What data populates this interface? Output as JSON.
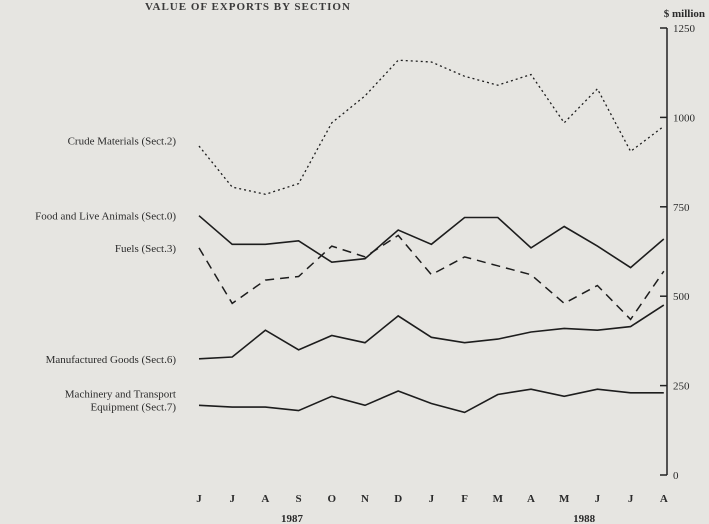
{
  "chart_data": {
    "type": "line",
    "title": "VALUE OF EXPORTS BY SECTION",
    "unit_label": "$ million",
    "ylim": [
      0,
      1250
    ],
    "y_ticks": [
      0,
      250,
      500,
      750,
      1000,
      1250
    ],
    "x_tick_labels": [
      "J",
      "J",
      "A",
      "S",
      "O",
      "N",
      "D",
      "J",
      "F",
      "M",
      "A",
      "M",
      "J",
      "J",
      "A"
    ],
    "year_labels": [
      {
        "text": "1987",
        "index": 2.8
      },
      {
        "text": "1988",
        "index": 11.6
      }
    ],
    "series": [
      {
        "name": "Crude Materials (Sect.2)",
        "style": "dotted",
        "label_value": 935,
        "values": [
          920,
          805,
          785,
          815,
          985,
          1060,
          1160,
          1155,
          1115,
          1090,
          1120,
          985,
          1080,
          905,
          975
        ]
      },
      {
        "name": "Food and Live Animals (Sect.0)",
        "style": "solid",
        "label_value": 725,
        "values": [
          725,
          645,
          645,
          655,
          595,
          605,
          685,
          645,
          720,
          720,
          635,
          695,
          640,
          580,
          660
        ]
      },
      {
        "name": "Fuels (Sect.3)",
        "style": "dashed",
        "label_value": 635,
        "values": [
          635,
          480,
          545,
          555,
          640,
          610,
          670,
          560,
          610,
          585,
          560,
          480,
          530,
          435,
          570
        ]
      },
      {
        "name": "Manufactured Goods (Sect.6)",
        "style": "solid",
        "label_value": 325,
        "values": [
          325,
          330,
          405,
          350,
          390,
          370,
          445,
          385,
          370,
          380,
          400,
          410,
          405,
          415,
          475
        ]
      },
      {
        "name": "Machinery and Transport Equipment (Sect.7)",
        "label_lines": [
          "Machinery and Transport",
          "Equipment (Sect.7)"
        ],
        "style": "solid",
        "label_value": 210,
        "values": [
          195,
          190,
          190,
          180,
          220,
          195,
          235,
          200,
          175,
          225,
          240,
          220,
          240,
          230,
          230
        ]
      }
    ]
  }
}
